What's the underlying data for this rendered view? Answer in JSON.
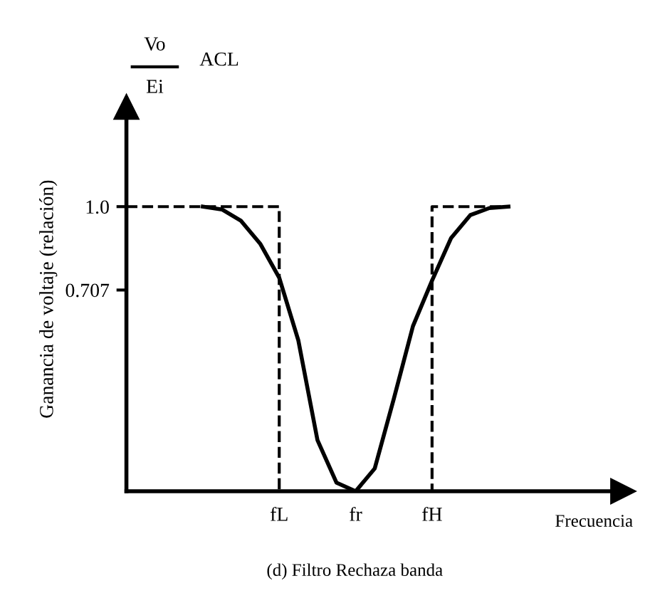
{
  "chart_data": {
    "type": "line",
    "title": "(d) Filtro Rechaza banda",
    "xlabel": "Frecuencia",
    "ylabel": "Ganancia de voltaje (relación)",
    "annotations": [
      "Vo",
      "Ei",
      "ACL"
    ],
    "categories": [
      null,
      null,
      null,
      null,
      null,
      null,
      null,
      null,
      "fL",
      null,
      null,
      null,
      "fr",
      null,
      null,
      null,
      "fH",
      null,
      null,
      null,
      null
    ],
    "series": [
      {
        "values": [
          null,
          null,
          null,
          null,
          1.0,
          0.99,
          0.95,
          0.87,
          0.75,
          0.53,
          0.18,
          0.03,
          0,
          0.08,
          0.325,
          0.58,
          0.74,
          0.89,
          0.97,
          0.995,
          1.0
        ],
        "color": "#000000",
        "line_style": "solid"
      },
      {
        "type": "step",
        "values": [
          1,
          1,
          1,
          1,
          1,
          1,
          1,
          1,
          0,
          null,
          null,
          null,
          null,
          null,
          null,
          null,
          null,
          null,
          null,
          null,
          null
        ],
        "color": "#000000",
        "line_style": "dashed"
      },
      {
        "type": "step",
        "values": [
          null,
          null,
          null,
          null,
          null,
          null,
          null,
          null,
          null,
          null,
          null,
          null,
          null,
          null,
          null,
          0,
          1,
          1,
          1,
          1,
          1
        ],
        "color": "#000000",
        "line_style": "dashed"
      }
    ],
    "ylim": [
      0,
      1.35
    ],
    "yticks": [
      {
        "value": 0.707,
        "label": "0.707"
      },
      {
        "value": 1.0,
        "label": "1.0"
      }
    ],
    "grid": false,
    "marker": "none"
  }
}
